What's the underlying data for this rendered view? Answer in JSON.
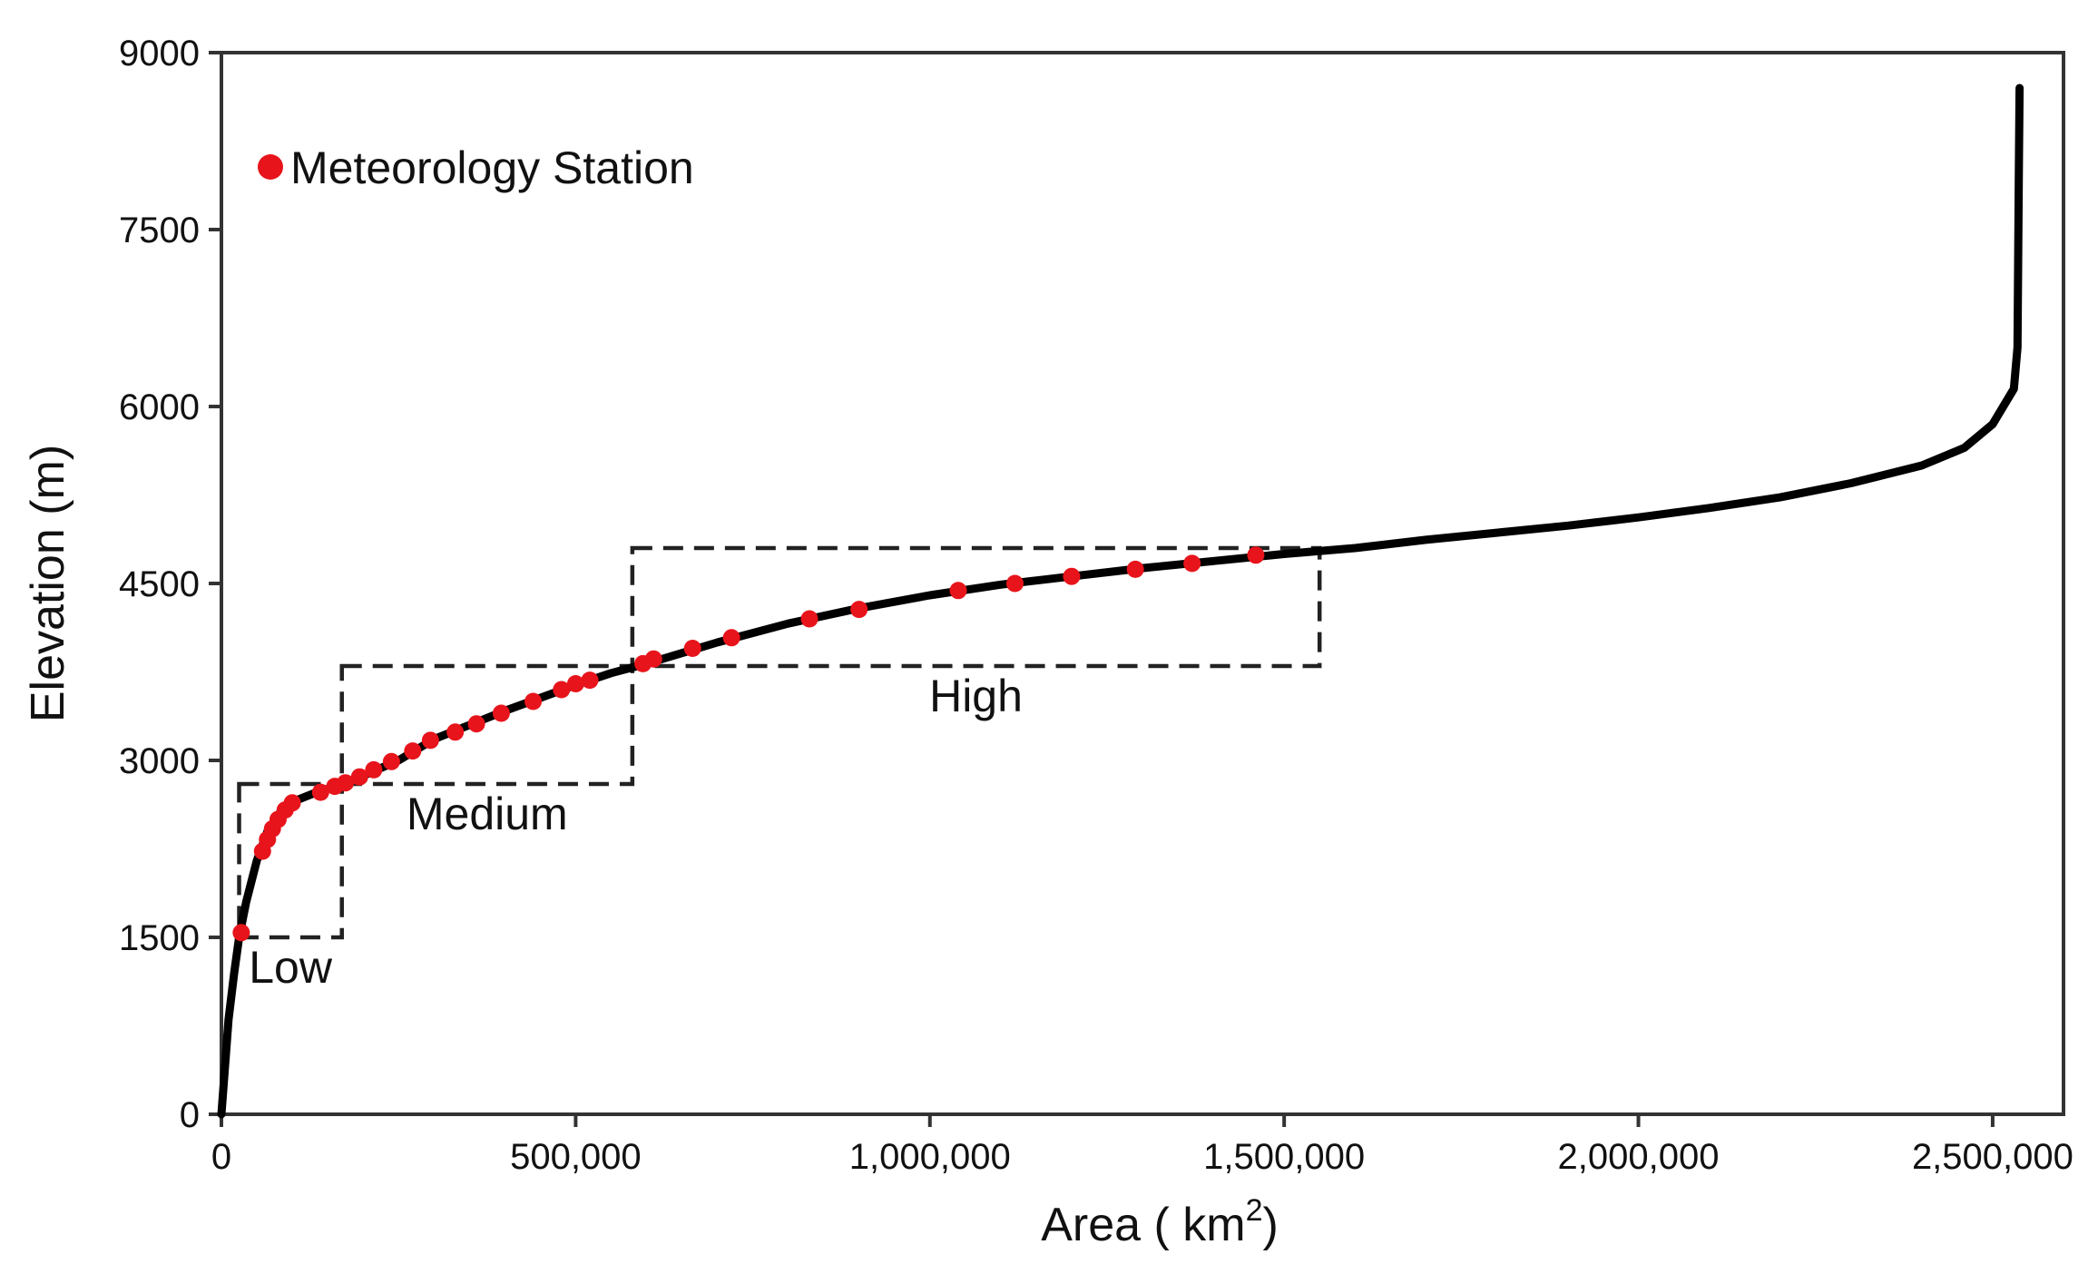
{
  "chart_data": {
    "type": "line",
    "xlabel": "Area ( km",
    "xlabel_sup": "2",
    "xlabel_close": ")",
    "ylabel": "Elevation (m)",
    "xlim": [
      0,
      2600000
    ],
    "ylim": [
      0,
      9000
    ],
    "xticks": [
      0,
      500000,
      1000000,
      1500000,
      2000000,
      2500000
    ],
    "xtick_labels": [
      "0",
      "500,000",
      "1,000,000",
      "1,500,000",
      "2,000,000",
      "2,500,000"
    ],
    "yticks": [
      0,
      1500,
      3000,
      4500,
      6000,
      7500,
      9000
    ],
    "ytick_labels": [
      "0",
      "1500",
      "3000",
      "4500",
      "6000",
      "7500",
      "9000"
    ],
    "grid": false,
    "legend_position": "top-left",
    "colors": {
      "curve": "#000000",
      "station": "#e8141b",
      "box": "#222222"
    },
    "series": [
      {
        "kind": "curve",
        "points": [
          [
            0,
            0
          ],
          [
            5000,
            400
          ],
          [
            10000,
            800
          ],
          [
            18000,
            1200
          ],
          [
            25000,
            1500
          ],
          [
            35000,
            1800
          ],
          [
            50000,
            2150
          ],
          [
            65000,
            2400
          ],
          [
            85000,
            2580
          ],
          [
            105000,
            2660
          ],
          [
            130000,
            2720
          ],
          [
            160000,
            2780
          ],
          [
            200000,
            2870
          ],
          [
            250000,
            3000
          ],
          [
            300000,
            3180
          ],
          [
            350000,
            3300
          ],
          [
            400000,
            3420
          ],
          [
            450000,
            3530
          ],
          [
            500000,
            3640
          ],
          [
            550000,
            3740
          ],
          [
            600000,
            3820
          ],
          [
            650000,
            3910
          ],
          [
            700000,
            4000
          ],
          [
            800000,
            4160
          ],
          [
            900000,
            4290
          ],
          [
            1000000,
            4400
          ],
          [
            1100000,
            4490
          ],
          [
            1200000,
            4560
          ],
          [
            1300000,
            4630
          ],
          [
            1400000,
            4690
          ],
          [
            1500000,
            4750
          ],
          [
            1600000,
            4800
          ],
          [
            1700000,
            4870
          ],
          [
            1800000,
            4930
          ],
          [
            1900000,
            4990
          ],
          [
            2000000,
            5060
          ],
          [
            2100000,
            5140
          ],
          [
            2200000,
            5230
          ],
          [
            2300000,
            5350
          ],
          [
            2400000,
            5500
          ],
          [
            2460000,
            5650
          ],
          [
            2500000,
            5850
          ],
          [
            2530000,
            6150
          ],
          [
            2535000,
            6500
          ],
          [
            2536000,
            7200
          ],
          [
            2537000,
            8000
          ],
          [
            2538000,
            8700
          ]
        ]
      },
      {
        "name": "Meteorology Station",
        "kind": "points",
        "points": [
          [
            28000,
            1540
          ],
          [
            58000,
            2230
          ],
          [
            65000,
            2330
          ],
          [
            72000,
            2420
          ],
          [
            80000,
            2500
          ],
          [
            90000,
            2580
          ],
          [
            100000,
            2640
          ],
          [
            140000,
            2730
          ],
          [
            160000,
            2780
          ],
          [
            175000,
            2810
          ],
          [
            195000,
            2860
          ],
          [
            215000,
            2920
          ],
          [
            240000,
            2990
          ],
          [
            270000,
            3080
          ],
          [
            295000,
            3170
          ],
          [
            330000,
            3240
          ],
          [
            360000,
            3310
          ],
          [
            395000,
            3400
          ],
          [
            440000,
            3500
          ],
          [
            480000,
            3600
          ],
          [
            500000,
            3650
          ],
          [
            520000,
            3680
          ],
          [
            595000,
            3820
          ],
          [
            610000,
            3860
          ],
          [
            665000,
            3950
          ],
          [
            720000,
            4040
          ],
          [
            830000,
            4200
          ],
          [
            900000,
            4280
          ],
          [
            1040000,
            4440
          ],
          [
            1120000,
            4500
          ],
          [
            1200000,
            4560
          ],
          [
            1290000,
            4620
          ],
          [
            1370000,
            4670
          ],
          [
            1460000,
            4740
          ]
        ]
      }
    ],
    "regions": [
      {
        "label": "Low",
        "x": [
          25000,
          170000
        ],
        "y": [
          1500,
          2800
        ]
      },
      {
        "label": "Medium",
        "x": [
          170000,
          580000
        ],
        "y": [
          2800,
          3800
        ]
      },
      {
        "label": "High",
        "x": [
          580000,
          1550000
        ],
        "y": [
          3800,
          4800
        ]
      }
    ]
  }
}
